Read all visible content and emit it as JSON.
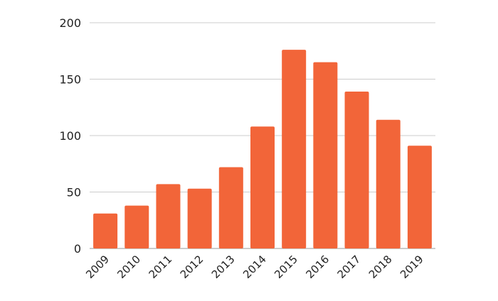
{
  "chart_data": {
    "type": "bar",
    "categories": [
      "2009",
      "2010",
      "2011",
      "2012",
      "2013",
      "2014",
      "2015",
      "2016",
      "2017",
      "2018",
      "2019"
    ],
    "values": [
      31,
      38,
      57,
      53,
      72,
      108,
      176,
      165,
      139,
      114,
      91
    ],
    "title": "",
    "xlabel": "",
    "ylabel": "",
    "ylim": [
      0,
      200
    ],
    "yticks": [
      0,
      50,
      100,
      150,
      200
    ],
    "grid": true,
    "legend": "none",
    "bar_color": "#f26539"
  }
}
